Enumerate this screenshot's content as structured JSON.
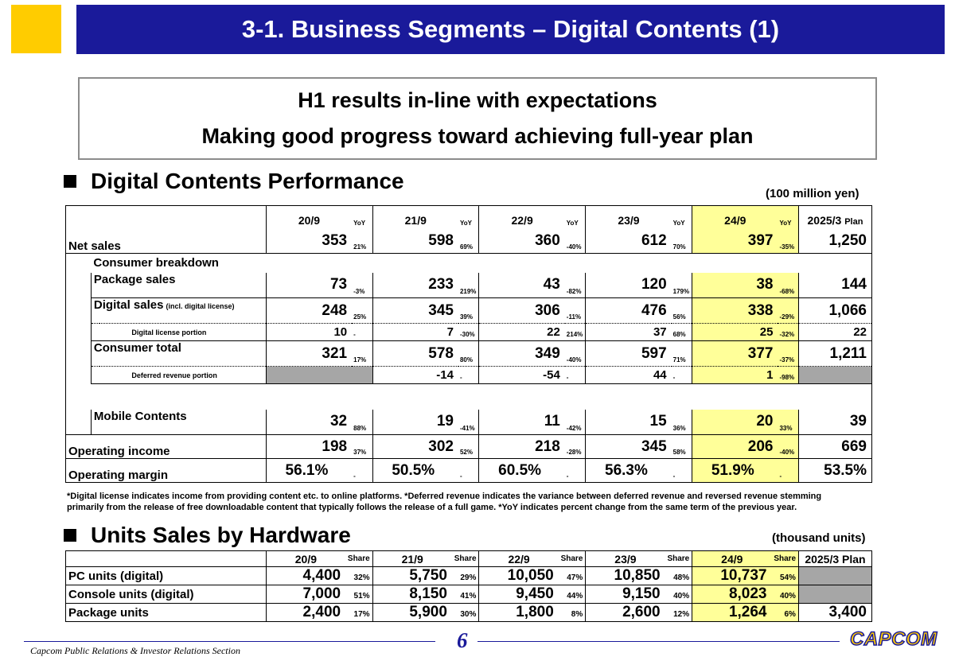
{
  "header": {
    "title": "3-1. Business Segments – Digital Contents (1)"
  },
  "headline": {
    "line1": "H1 results in-line with expectations",
    "line2": "Making good progress toward achieving full-year plan"
  },
  "performance": {
    "section_title": "Digital Contents Performance",
    "unit": "(100 million yen)",
    "columns": [
      "20/9",
      "21/9",
      "22/9",
      "23/9",
      "24/9",
      "2025/3"
    ],
    "yoy_label": "YoY",
    "plan_label": "Plan",
    "rows": {
      "net_sales": {
        "label": "Net sales",
        "values": [
          "353",
          "598",
          "360",
          "612",
          "397",
          "1,250"
        ],
        "yoy": [
          "21%",
          "69%",
          "-40%",
          "70%",
          "-35%"
        ]
      },
      "consumer_breakdown": {
        "label": "Consumer breakdown"
      },
      "package_sales": {
        "label": "Package sales",
        "values": [
          "73",
          "233",
          "43",
          "120",
          "38",
          "144"
        ],
        "yoy": [
          "-3%",
          "219%",
          "-82%",
          "179%",
          "-68%"
        ]
      },
      "digital_sales": {
        "label": "Digital sales",
        "label_sub": "(incl. digital license)",
        "values": [
          "248",
          "345",
          "306",
          "476",
          "338",
          "1,066"
        ],
        "yoy": [
          "25%",
          "39%",
          "-11%",
          "56%",
          "-29%"
        ]
      },
      "digital_license": {
        "label": "Digital license portion",
        "values": [
          "10",
          "7",
          "22",
          "37",
          "25",
          "22"
        ],
        "yoy": [
          "-",
          "-30%",
          "214%",
          "68%",
          "-32%"
        ]
      },
      "consumer_total": {
        "label": "Consumer total",
        "values": [
          "321",
          "578",
          "349",
          "597",
          "377",
          "1,211"
        ],
        "yoy": [
          "17%",
          "80%",
          "-40%",
          "71%",
          "-37%"
        ]
      },
      "deferred_revenue": {
        "label": "Deferred revenue portion",
        "values": [
          "",
          "-14",
          "-54",
          "44",
          "1",
          ""
        ],
        "yoy": [
          "",
          "-",
          "-",
          "-",
          "-98%"
        ]
      },
      "mobile_contents": {
        "label": "Mobile Contents",
        "values": [
          "32",
          "19",
          "11",
          "15",
          "20",
          "39"
        ],
        "yoy": [
          "88%",
          "-41%",
          "-42%",
          "36%",
          "33%"
        ]
      },
      "operating_income": {
        "label": "Operating income",
        "values": [
          "198",
          "302",
          "218",
          "345",
          "206",
          "669"
        ],
        "yoy": [
          "37%",
          "52%",
          "-28%",
          "58%",
          "-40%"
        ]
      },
      "operating_margin": {
        "label": "Operating margin",
        "values": [
          "56.1%",
          "50.5%",
          "60.5%",
          "56.3%",
          "51.9%",
          "53.5%"
        ],
        "yoy": [
          "-",
          "-",
          "-",
          "-",
          "-"
        ]
      }
    }
  },
  "footnote": {
    "line1": "*Digital license indicates income from providing content etc. to online platforms. *Deferred revenue indicates the variance between deferred revenue and reversed revenue stemming",
    "line2": "primarily from the release of free downloadable content that typically follows the release of a full game. *YoY indicates percent change from the same term of the previous year."
  },
  "units": {
    "section_title": "Units Sales by Hardware",
    "unit": "(thousand units)",
    "columns": [
      "20/9",
      "21/9",
      "22/9",
      "23/9",
      "24/9",
      "2025/3 Plan"
    ],
    "share_label": "Share",
    "rows": {
      "pc": {
        "label": "PC units (digital)",
        "values": [
          "4,400",
          "5,750",
          "10,050",
          "10,850",
          "10,737",
          ""
        ],
        "share": [
          "32%",
          "29%",
          "47%",
          "48%",
          "54%"
        ]
      },
      "console": {
        "label": "Console units (digital)",
        "values": [
          "7,000",
          "8,150",
          "9,450",
          "9,150",
          "8,023",
          ""
        ],
        "share": [
          "51%",
          "41%",
          "44%",
          "40%",
          "40%"
        ]
      },
      "package": {
        "label": "Package units",
        "values": [
          "2,400",
          "5,900",
          "1,800",
          "2,600",
          "1,264",
          "3,400"
        ],
        "share": [
          "17%",
          "30%",
          "8%",
          "12%",
          "6%"
        ]
      }
    }
  },
  "footer": {
    "text": "Capcom Public Relations & Investor Relations Section",
    "page": "6",
    "logo": "CAPCOM"
  },
  "colors": {
    "title_bar": "#1a1a9a",
    "accent_yellow": "#ffcc00",
    "highlight_column": "#ffff99",
    "empty_cell": "#a6a6a6"
  }
}
